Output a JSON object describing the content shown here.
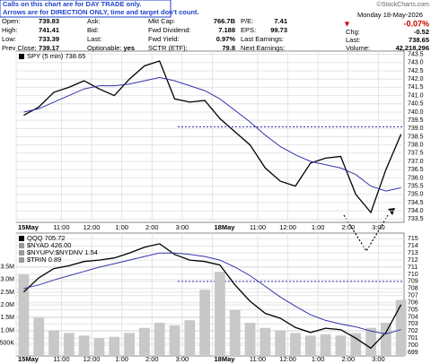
{
  "notice": [
    "Calls on this chart are for DAY TRADE only.",
    "Arrows are for DIRECTION ONLY, time and target don't count."
  ],
  "copyright": "©StockCharts.com",
  "quote": {
    "columns": [
      [
        [
          "Open:",
          "739.83"
        ],
        [
          "High:",
          "741.41"
        ],
        [
          "Low:",
          "733.39"
        ],
        [
          "Prev Close:",
          "739.17"
        ]
      ],
      [
        [
          "Ask:"
        ],
        [
          "Bid:"
        ],
        [
          "Last:"
        ],
        [
          "Optionable:",
          "yes"
        ]
      ],
      [
        [
          "Mkt Cap:",
          "766.7B"
        ],
        [
          "Fwd Dividend:",
          "7.188"
        ],
        [
          "Fwd Yield:",
          "0.97%"
        ],
        [
          "SCTR (ETF):",
          "79.8"
        ]
      ],
      [
        [
          "P/E:",
          "7.41"
        ],
        [
          "EPS:",
          "99.73"
        ],
        [
          "Last Earnings:"
        ],
        [
          "Next Earnings:"
        ]
      ]
    ],
    "date": "Monday 18-May-2026",
    "change_pct": "-0.07%",
    "right": [
      [
        "Chg:",
        "-0.52"
      ],
      [
        "Last:",
        "738.65"
      ],
      [
        "Volume:",
        "42,218,296"
      ]
    ]
  },
  "chart_data": [
    {
      "type": "line",
      "grid": true,
      "x": [
        0.25,
        0.75,
        1.25,
        1.75,
        2.25,
        2.75,
        3.25,
        3.75,
        4.25,
        4.75,
        5.25,
        5.75,
        6.25,
        6.75,
        7.25,
        7.75,
        8.25,
        8.75,
        9.25,
        9.75,
        10.25,
        10.75,
        11.25,
        11.75,
        12.25,
        12.75
      ],
      "xlim": [
        0,
        12.85
      ],
      "xticks": [
        {
          "value": 0,
          "label": "15May"
        },
        {
          "value": 1.5,
          "label": "11:00"
        },
        {
          "value": 2.5,
          "label": "12:00"
        },
        {
          "value": 3.5,
          "label": "1:00"
        },
        {
          "value": 4.5,
          "label": "2:00"
        },
        {
          "value": 5.5,
          "label": "3:00"
        },
        {
          "value": 6.5,
          "label": "18May"
        },
        {
          "value": 8,
          "label": "11:00"
        },
        {
          "value": 9,
          "label": "12:00"
        },
        {
          "value": 10,
          "label": "1:00"
        },
        {
          "value": 11,
          "label": "2:00"
        },
        {
          "value": 12,
          "label": "3:00"
        }
      ],
      "ylim": [
        733.3,
        743.7
      ],
      "yticks": [
        733.5,
        {
          "value": 734,
          "label": "734.0"
        },
        734.5,
        {
          "value": 735,
          "label": "735.0"
        },
        735.5,
        {
          "value": 736,
          "label": "736.0"
        },
        736.5,
        {
          "value": 737,
          "label": "737.0"
        },
        737.5,
        {
          "value": 738,
          "label": "738.0"
        },
        738.5,
        {
          "value": 739,
          "label": "739.0"
        },
        739.5,
        {
          "value": 740,
          "label": "740.0"
        },
        740.5,
        {
          "value": 741,
          "label": "741.0"
        },
        741.5,
        {
          "value": 742,
          "label": "742.0"
        },
        742.5,
        {
          "value": 743,
          "label": "743.0"
        },
        743.5
      ],
      "hline": 739.1,
      "series": [
        {
          "name": "SPY (5 min) 738.65",
          "color": "#000000",
          "values": [
            739.8,
            740.3,
            741.2,
            741.5,
            741.9,
            741.4,
            741.0,
            742.0,
            742.8,
            743.1,
            740.8,
            740.6,
            740.7,
            739.6,
            738.8,
            738.0,
            736.6,
            735.8,
            735.5,
            736.9,
            737.2,
            737.3,
            735.0,
            733.9,
            736.5,
            738.65
          ]
        },
        {
          "color": "#3333aa",
          "values": [
            740.0,
            740.2,
            740.6,
            741.0,
            741.4,
            741.6,
            741.6,
            741.7,
            741.9,
            742.1,
            741.9,
            741.6,
            741.3,
            740.8,
            740.1,
            739.4,
            738.6,
            737.9,
            737.4,
            737.0,
            736.8,
            736.6,
            736.2,
            735.5,
            735.2,
            735.4
          ]
        }
      ]
    },
    {
      "type": "line",
      "grid": true,
      "x": [
        0.25,
        0.75,
        1.25,
        1.75,
        2.25,
        2.75,
        3.25,
        3.75,
        4.25,
        4.75,
        5.25,
        5.75,
        6.25,
        6.75,
        7.25,
        7.75,
        8.25,
        8.75,
        9.25,
        9.75,
        10.25,
        10.75,
        11.25,
        11.75,
        12.25,
        12.75
      ],
      "xlim": [
        0,
        12.85
      ],
      "xticks": [
        {
          "value": 0,
          "label": "15May"
        },
        {
          "value": 1.5,
          "label": "11:00"
        },
        {
          "value": 2.5,
          "label": "12:00"
        },
        {
          "value": 3.5,
          "label": "1:00"
        },
        {
          "value": 4.5,
          "label": "2:00"
        },
        {
          "value": 5.5,
          "label": "3:00"
        },
        {
          "value": 6.5,
          "label": "18May"
        },
        {
          "value": 8,
          "label": "11:00"
        },
        {
          "value": 9,
          "label": "12:00"
        },
        {
          "value": 10,
          "label": "1:00"
        },
        {
          "value": 11,
          "label": "2:00"
        },
        {
          "value": 12,
          "label": "3:00"
        }
      ],
      "ylim": [
        0,
        4820000
      ],
      "yticks": [
        {
          "value": 500000,
          "label": "500K"
        },
        {
          "value": 1000000,
          "label": "1.0M"
        },
        {
          "value": 1500000,
          "label": "1.5M"
        },
        {
          "value": 2000000,
          "label": "2.0M"
        },
        {
          "value": 2500000,
          "label": "2.5M"
        },
        {
          "value": 3000000,
          "label": "3.0M"
        },
        {
          "value": 3500000,
          "label": "3.5M"
        }
      ],
      "y2lim": [
        698.5,
        715.8
      ],
      "y2ticks": [
        699,
        700,
        701,
        702,
        703,
        704,
        705,
        706,
        707,
        708,
        709,
        710,
        711,
        712,
        713,
        714,
        715
      ],
      "hline": 709,
      "extra_legend": [
        "$NYAD 426.00",
        "$NYUPV:$NYDNV 1.54",
        "$TRIN 0.89"
      ],
      "series": [
        {
          "kind": "bar",
          "color": "#c8c8c8",
          "values": [
            3200000,
            1500000,
            1000000,
            900000,
            800000,
            700000,
            750000,
            900000,
            1100000,
            1300000,
            1200000,
            1400000,
            2600000,
            3300000,
            1800000,
            1300000,
            1100000,
            1000000,
            900000,
            800000,
            850000,
            800000,
            900000,
            1100000,
            1300000,
            2200000
          ]
        },
        {
          "name": "QQQ 705.72",
          "axis": "y2",
          "color": "#000000",
          "values": [
            707.5,
            709.5,
            710.8,
            711.2,
            711.8,
            712.0,
            712.3,
            713.0,
            713.8,
            714.3,
            712.8,
            712.0,
            711.8,
            711.3,
            708.5,
            706.2,
            704.5,
            703.8,
            702.5,
            701.8,
            702.4,
            702.2,
            701.0,
            699.6,
            701.8,
            705.72
          ]
        },
        {
          "axis": "y2",
          "color": "#3333aa",
          "values": [
            708,
            708.5,
            709.2,
            709.8,
            710.4,
            711,
            711.5,
            712,
            712.5,
            713,
            713,
            712.8,
            712.5,
            712,
            711,
            709.8,
            708.3,
            706.8,
            705.5,
            704.3,
            703.5,
            703,
            702.6,
            702,
            701.6,
            702.2
          ]
        }
      ]
    }
  ]
}
